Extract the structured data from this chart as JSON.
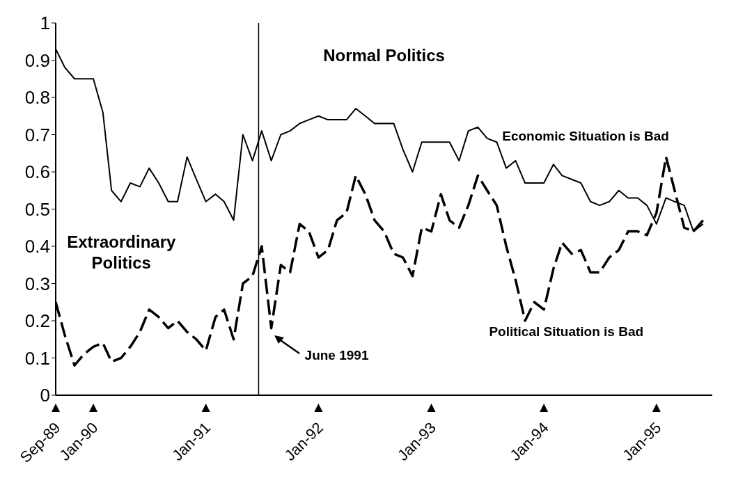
{
  "chart_data": {
    "type": "line",
    "x": [
      "1989-09",
      "1989-10",
      "1989-11",
      "1989-12",
      "1990-01",
      "1990-02",
      "1990-03",
      "1990-04",
      "1990-05",
      "1990-06",
      "1990-07",
      "1990-08",
      "1990-09",
      "1990-10",
      "1990-11",
      "1990-12",
      "1991-01",
      "1991-02",
      "1991-03",
      "1991-04",
      "1991-05",
      "1991-06",
      "1991-07",
      "1991-08",
      "1991-09",
      "1991-10",
      "1991-11",
      "1991-12",
      "1992-01",
      "1992-02",
      "1992-03",
      "1992-04",
      "1992-05",
      "1992-06",
      "1992-07",
      "1992-08",
      "1992-09",
      "1992-10",
      "1992-11",
      "1992-12",
      "1993-01",
      "1993-02",
      "1993-03",
      "1993-04",
      "1993-05",
      "1993-06",
      "1993-07",
      "1993-08",
      "1993-09",
      "1993-10",
      "1993-11",
      "1993-12",
      "1994-01",
      "1994-02",
      "1994-03",
      "1994-04",
      "1994-05",
      "1994-06",
      "1994-07",
      "1994-08",
      "1994-09",
      "1994-10",
      "1994-11",
      "1994-12",
      "1995-01",
      "1995-02",
      "1995-03",
      "1995-04",
      "1995-05",
      "1995-06"
    ],
    "series": [
      {
        "name": "Economic Situation is Bad",
        "color": "#000000",
        "line_style": "solid",
        "values": [
          0.93,
          0.88,
          0.85,
          0.85,
          0.85,
          0.76,
          0.55,
          0.52,
          0.57,
          0.56,
          0.61,
          0.57,
          0.52,
          0.52,
          0.64,
          0.58,
          0.52,
          0.54,
          0.52,
          0.47,
          0.7,
          0.63,
          0.71,
          0.63,
          0.7,
          0.71,
          0.73,
          0.74,
          0.75,
          0.74,
          0.74,
          0.74,
          0.77,
          0.75,
          0.73,
          0.73,
          0.73,
          0.66,
          0.6,
          0.68,
          0.68,
          0.68,
          0.68,
          0.63,
          0.71,
          0.72,
          0.69,
          0.68,
          0.61,
          0.63,
          0.57,
          0.57,
          0.57,
          0.62,
          0.59,
          0.58,
          0.57,
          0.52,
          0.51,
          0.52,
          0.55,
          0.53,
          0.53,
          0.51,
          0.46,
          0.53,
          0.52,
          0.51,
          0.44,
          0.46
        ]
      },
      {
        "name": "Political Situation is Bad",
        "color": "#000000",
        "line_style": "dashed",
        "values": [
          0.25,
          0.16,
          0.08,
          0.11,
          0.13,
          0.14,
          0.09,
          0.1,
          0.13,
          0.17,
          0.23,
          0.21,
          0.18,
          0.2,
          0.17,
          0.15,
          0.12,
          0.21,
          0.23,
          0.15,
          0.3,
          0.32,
          0.4,
          0.18,
          0.35,
          0.33,
          0.46,
          0.44,
          0.37,
          0.39,
          0.47,
          0.49,
          0.59,
          0.54,
          0.47,
          0.44,
          0.38,
          0.37,
          0.32,
          0.45,
          0.44,
          0.54,
          0.47,
          0.45,
          0.51,
          0.59,
          0.55,
          0.51,
          0.4,
          0.31,
          0.2,
          0.25,
          0.23,
          0.34,
          0.41,
          0.38,
          0.39,
          0.33,
          0.33,
          0.37,
          0.39,
          0.44,
          0.44,
          0.43,
          0.49,
          0.64,
          0.55,
          0.45,
          0.44,
          0.47
        ]
      }
    ],
    "xlim": [
      "1989-09",
      "1995-07"
    ],
    "xticks": [
      {
        "value": "1989-09",
        "label": "Sep-89"
      },
      {
        "value": "1990-01",
        "label": "Jan-90"
      },
      {
        "value": "1991-01",
        "label": "Jan-91"
      },
      {
        "value": "1992-01",
        "label": "Jan-92"
      },
      {
        "value": "1993-01",
        "label": "Jan-93"
      },
      {
        "value": "1994-01",
        "label": "Jan-94"
      },
      {
        "value": "1995-01",
        "label": "Jan-95"
      }
    ],
    "ylim": [
      0,
      1
    ],
    "yticks": [
      0,
      0.1,
      0.2,
      0.3,
      0.4,
      0.5,
      0.6,
      0.7,
      0.8,
      0.9,
      1
    ],
    "ref_lines": [
      {
        "axis": "x",
        "value": "1991-06-21",
        "color": "#000000"
      }
    ],
    "annotations": [
      "Normal Politics",
      "Extraordinary Politics",
      {
        "text": "June 1991",
        "x": "1991-08",
        "y": 0.18
      }
    ],
    "grid": false,
    "legend": false,
    "marker": "none"
  }
}
